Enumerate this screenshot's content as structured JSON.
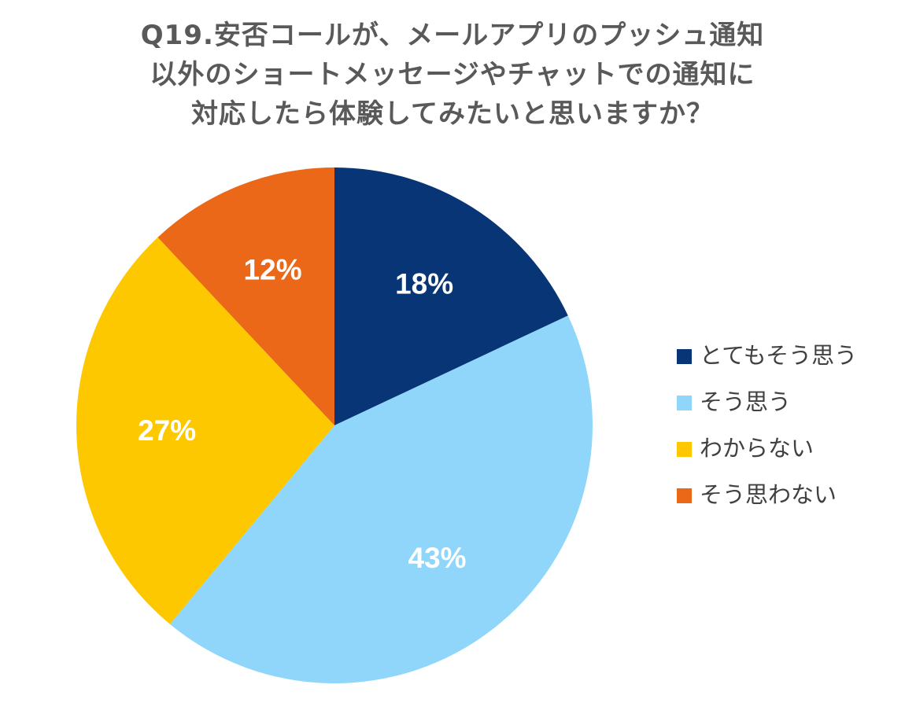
{
  "chart_data": {
    "type": "pie",
    "title_lines": [
      "Q19.安否コールが、メールアプリのプッシュ通知",
      "以外のショートメッセージやチャットでの通知に",
      "対応したら体験してみたいと思いますか？"
    ],
    "slices": [
      {
        "label": "とてもそう思う",
        "value": 18,
        "data_label": "18%",
        "color": "#073576"
      },
      {
        "label": "そう思う",
        "value": 43,
        "data_label": "43%",
        "color": "#8fd6fa"
      },
      {
        "label": "わからない",
        "value": 27,
        "data_label": "27%",
        "color": "#fec800"
      },
      {
        "label": "そう思わない",
        "value": 12,
        "data_label": "12%",
        "color": "#ea6817"
      }
    ],
    "start_angle_deg": 0,
    "direction": "clockwise",
    "legend_position": "right",
    "data_label_color": "#ffffff"
  }
}
